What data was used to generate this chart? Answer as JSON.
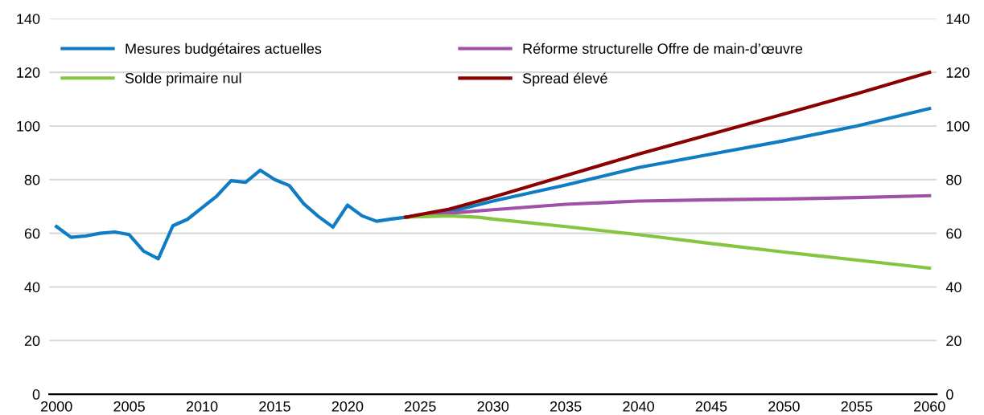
{
  "chart_data": {
    "type": "line",
    "xlim": [
      1999.5,
      2060.5
    ],
    "xticks": [
      2000,
      2005,
      2010,
      2015,
      2020,
      2025,
      2030,
      2035,
      2040,
      2045,
      2050,
      2055,
      2060
    ],
    "ylim": [
      0,
      140
    ],
    "yticks": [
      0,
      20,
      40,
      60,
      80,
      100,
      120,
      140
    ],
    "y2lim": [
      0,
      140
    ],
    "y2ticks": [
      0,
      20,
      40,
      60,
      80,
      100,
      120,
      140
    ],
    "grid": "y",
    "legend": "top left",
    "marker": "none",
    "line_style": "solid",
    "series": [
      {
        "name": "Mesures budgétaires actuelles",
        "color": "#0f7cc4",
        "x": [
          2000,
          2001,
          2002,
          2003,
          2004,
          2005,
          2006,
          2007,
          2008,
          2009,
          2010,
          2011,
          2012,
          2013,
          2014,
          2015,
          2016,
          2017,
          2018,
          2019,
          2020,
          2021,
          2022,
          2023,
          2024,
          2027,
          2030,
          2035,
          2040,
          2045,
          2050,
          2055,
          2060
        ],
        "values": [
          62.5,
          58.5,
          59,
          60,
          60.5,
          59.5,
          53.3,
          50.5,
          62.8,
          65.2,
          69.5,
          73.8,
          79.6,
          79,
          83.5,
          80,
          77.8,
          71,
          66.3,
          62.3,
          70.5,
          66.5,
          64.5,
          65.3,
          66,
          68,
          72,
          78,
          84.5,
          89.5,
          94.5,
          100,
          106.5
        ]
      },
      {
        "name": "Réforme structurelle Offre de main-d’œuvre",
        "color": "#a150a8",
        "x": [
          2024,
          2027,
          2030,
          2035,
          2040,
          2045,
          2050,
          2055,
          2060
        ],
        "values": [
          66,
          67.5,
          68.8,
          70.8,
          72,
          72.5,
          72.8,
          73.3,
          74
        ]
      },
      {
        "name": "Solde primaire nul",
        "color": "#86c540",
        "x": [
          2024,
          2027,
          2029,
          2030,
          2035,
          2040,
          2045,
          2050,
          2055,
          2060
        ],
        "values": [
          66,
          66.5,
          66,
          65.3,
          62.5,
          59.5,
          56.2,
          53,
          50,
          47
        ]
      },
      {
        "name": "Spread élevé",
        "color": "#8b0000",
        "x": [
          2024,
          2027,
          2030,
          2035,
          2040,
          2045,
          2050,
          2055,
          2060
        ],
        "values": [
          66,
          69,
          73.5,
          81.5,
          89.5,
          97,
          104.5,
          112,
          120
        ]
      }
    ]
  }
}
